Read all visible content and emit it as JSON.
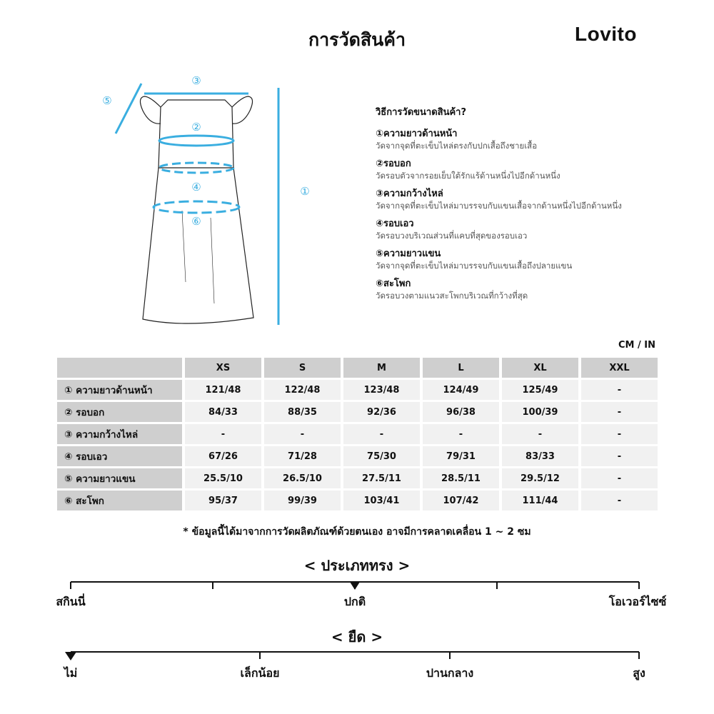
{
  "title": "การวัดสินค้า",
  "logo": "Lovito",
  "accent_color": "#3aaee0",
  "diagram_markers": [
    "①",
    "②",
    "③",
    "④",
    "⑤",
    "⑥"
  ],
  "howto": {
    "heading": "วิธีการวัดขนาดสินค้า?",
    "items": [
      {
        "title": "①ความยาวด้านหน้า",
        "desc": "วัดจากจุดที่ตะเข็บไหล่ตรงกับปกเสื้อถึงชายเสื้อ"
      },
      {
        "title": "②รอบอก",
        "desc": "วัดรอบตัวจากรอยเย็บใต้รักแร้ด้านหนึ่งไปอีกด้านหนึ่ง"
      },
      {
        "title": "③ความกว้างไหล่",
        "desc": "วัดจากจุดที่ตะเข็บไหล่มาบรรจบกับแขนเสื้อจากด้านหนึ่งไปอีกด้านหนึ่ง"
      },
      {
        "title": "④รอบเอว",
        "desc": "วัดรอบวงบริเวณส่วนที่แคบที่สุดของรอบเอว"
      },
      {
        "title": "⑤ความยาวแขน",
        "desc": "วัดจากจุดที่ตะเข็บไหล่มาบรรจบกับแขนเสื้อถึงปลายแขน"
      },
      {
        "title": "⑥สะโพก",
        "desc": "วัดรอบวงตามแนวสะโพกบริเวณที่กว้างที่สุด"
      }
    ]
  },
  "unit": "CM / IN",
  "table": {
    "sizes": [
      "XS",
      "S",
      "M",
      "L",
      "XL",
      "XXL"
    ],
    "rows": [
      {
        "label": "① ความยาวด้านหน้า",
        "values": [
          "121/48",
          "122/48",
          "123/48",
          "124/49",
          "125/49",
          "-"
        ]
      },
      {
        "label": "② รอบอก",
        "values": [
          "84/33",
          "88/35",
          "92/36",
          "96/38",
          "100/39",
          "-"
        ]
      },
      {
        "label": "③ ความกว้างไหล่",
        "values": [
          "-",
          "-",
          "-",
          "-",
          "-",
          "-"
        ]
      },
      {
        "label": "④ รอบเอว",
        "values": [
          "67/26",
          "71/28",
          "75/30",
          "79/31",
          "83/33",
          "-"
        ]
      },
      {
        "label": "⑤ ความยาวแขน",
        "values": [
          "25.5/10",
          "26.5/10",
          "27.5/11",
          "28.5/11",
          "29.5/12",
          "-"
        ]
      },
      {
        "label": "⑥ สะโพก",
        "values": [
          "95/37",
          "99/39",
          "103/41",
          "107/42",
          "111/44",
          "-"
        ]
      }
    ]
  },
  "note": "* ข้อมูลนี้ได้มาจากการวัดผลิตภัณฑ์ด้วยตนเอง อาจมีการคลาดเคลื่อน 1 ~ 2 ซม",
  "fit": {
    "heading": "< ประเภททรง >",
    "labels": [
      "สกินนี่",
      "ปกติ",
      "โอเวอร์ไซซ์"
    ],
    "selected": "ปกติ"
  },
  "stretch": {
    "heading": "< ยืด >",
    "labels": [
      "ไม่",
      "เล็กน้อย",
      "ปานกลาง",
      "สูง"
    ],
    "selected": "ไม่"
  }
}
